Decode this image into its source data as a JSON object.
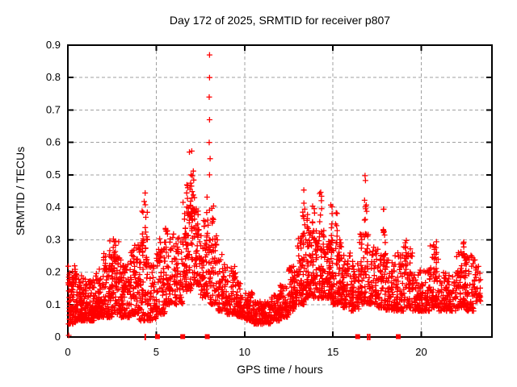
{
  "chart_data": {
    "type": "scatter",
    "title": "Day 172 of 2025, SRMTID for receiver p807",
    "xlabel": "GPS time / hours",
    "ylabel": "SRMTID / TECUs",
    "xlim": [
      0,
      24
    ],
    "ylim": [
      0,
      0.9
    ],
    "x_ticks": [
      0,
      5,
      10,
      15,
      20
    ],
    "y_ticks": [
      0,
      0.1,
      0.2,
      0.3,
      0.4,
      0.5,
      0.6,
      0.7,
      0.8,
      0.9
    ],
    "grid": true,
    "legend": "none",
    "marker": "plus-cross",
    "marker_color": "#ff0000",
    "grid_color": "#a0a0a0",
    "border_color": "#000000",
    "background": "#ffffff",
    "seed": 172807,
    "density_bins": [
      [
        0,
        0.5,
        0.04,
        0.22,
        90
      ],
      [
        0.5,
        1,
        0.05,
        0.19,
        85
      ],
      [
        1,
        1.5,
        0.05,
        0.18,
        85
      ],
      [
        1.5,
        2,
        0.06,
        0.21,
        85
      ],
      [
        2,
        2.5,
        0.06,
        0.26,
        85
      ],
      [
        2.5,
        3,
        0.07,
        0.31,
        80
      ],
      [
        3,
        3.5,
        0.06,
        0.23,
        75
      ],
      [
        3.5,
        4,
        0.07,
        0.29,
        75
      ],
      [
        4,
        4.5,
        0.05,
        0.31,
        65
      ],
      [
        4.5,
        5,
        0.05,
        0.23,
        55
      ],
      [
        5,
        5.5,
        0.07,
        0.3,
        60
      ],
      [
        5.5,
        6,
        0.1,
        0.35,
        60
      ],
      [
        6,
        6.5,
        0.1,
        0.31,
        65
      ],
      [
        6.5,
        7,
        0.14,
        0.42,
        70
      ],
      [
        7,
        7.5,
        0.16,
        0.4,
        70
      ],
      [
        7.5,
        8,
        0.12,
        0.36,
        65
      ],
      [
        8,
        8.5,
        0.1,
        0.33,
        55
      ],
      [
        8.5,
        9,
        0.08,
        0.26,
        60
      ],
      [
        9,
        9.5,
        0.07,
        0.22,
        60
      ],
      [
        9.5,
        10,
        0.06,
        0.17,
        60
      ],
      [
        10,
        10.5,
        0.05,
        0.14,
        60
      ],
      [
        10.5,
        11,
        0.04,
        0.11,
        60
      ],
      [
        11,
        11.5,
        0.04,
        0.11,
        60
      ],
      [
        11.5,
        12,
        0.05,
        0.13,
        60
      ],
      [
        12,
        12.5,
        0.06,
        0.16,
        60
      ],
      [
        12.5,
        13,
        0.08,
        0.22,
        65
      ],
      [
        13,
        13.5,
        0.1,
        0.32,
        75
      ],
      [
        13.5,
        14,
        0.12,
        0.38,
        75
      ],
      [
        14,
        14.5,
        0.12,
        0.34,
        75
      ],
      [
        14.5,
        15,
        0.12,
        0.3,
        75
      ],
      [
        15,
        15.5,
        0.1,
        0.3,
        70
      ],
      [
        15.5,
        16,
        0.09,
        0.26,
        65
      ],
      [
        16,
        16.5,
        0.08,
        0.24,
        60
      ],
      [
        16.5,
        17,
        0.1,
        0.32,
        65
      ],
      [
        17,
        17.5,
        0.1,
        0.28,
        60
      ],
      [
        17.5,
        18,
        0.09,
        0.28,
        60
      ],
      [
        18,
        18.5,
        0.08,
        0.24,
        60
      ],
      [
        18.5,
        19,
        0.08,
        0.26,
        60
      ],
      [
        19,
        19.5,
        0.09,
        0.29,
        60
      ],
      [
        19.5,
        20,
        0.08,
        0.21,
        55
      ],
      [
        20,
        20.5,
        0.08,
        0.21,
        55
      ],
      [
        20.5,
        21,
        0.09,
        0.29,
        60
      ],
      [
        21,
        21.5,
        0.08,
        0.21,
        55
      ],
      [
        21.5,
        22,
        0.08,
        0.19,
        45
      ],
      [
        22,
        22.5,
        0.09,
        0.28,
        60
      ],
      [
        22.5,
        23,
        0.08,
        0.26,
        60
      ],
      [
        23,
        23.35,
        0.11,
        0.24,
        35
      ]
    ],
    "spike_columns": [
      [
        2.45,
        0.2,
        0.3,
        6,
        0.08
      ],
      [
        4.3,
        0.22,
        0.46,
        12,
        0.1
      ],
      [
        4.45,
        0.2,
        0.4,
        8,
        0.06
      ],
      [
        5.25,
        0.18,
        0.31,
        8,
        0.08
      ],
      [
        6.7,
        0.3,
        0.47,
        10,
        0.1
      ],
      [
        6.95,
        0.33,
        0.58,
        10,
        0.08
      ],
      [
        7.1,
        0.3,
        0.52,
        12,
        0.08
      ],
      [
        7.95,
        0.25,
        0.5,
        10,
        0.1
      ],
      [
        8.2,
        0.25,
        0.42,
        8,
        0.08
      ],
      [
        13.35,
        0.3,
        0.465,
        10,
        0.06
      ],
      [
        13.9,
        0.3,
        0.44,
        8,
        0.07
      ],
      [
        14.3,
        0.3,
        0.45,
        9,
        0.06
      ],
      [
        14.9,
        0.28,
        0.42,
        8,
        0.06
      ],
      [
        15.2,
        0.25,
        0.4,
        8,
        0.06
      ],
      [
        16.85,
        0.28,
        0.51,
        12,
        0.07
      ],
      [
        17.9,
        0.26,
        0.41,
        8,
        0.06
      ],
      [
        19.1,
        0.22,
        0.31,
        6,
        0.08
      ],
      [
        20.8,
        0.2,
        0.31,
        8,
        0.08
      ],
      [
        22.4,
        0.2,
        0.3,
        8,
        0.08
      ]
    ],
    "outlier_points": [
      [
        8.02,
        0.87
      ],
      [
        8.02,
        0.8
      ],
      [
        8.0,
        0.74
      ],
      [
        8.02,
        0.67
      ],
      [
        8.0,
        0.6
      ],
      [
        8.05,
        0.55
      ],
      [
        8.02,
        0.5
      ],
      [
        0.05,
        0.005
      ]
    ],
    "baseline_squares": [
      5.07,
      6.5,
      7.89,
      16.4,
      18.7
    ],
    "baseline_ticks": [
      4.38,
      16.97,
      17.08
    ]
  }
}
